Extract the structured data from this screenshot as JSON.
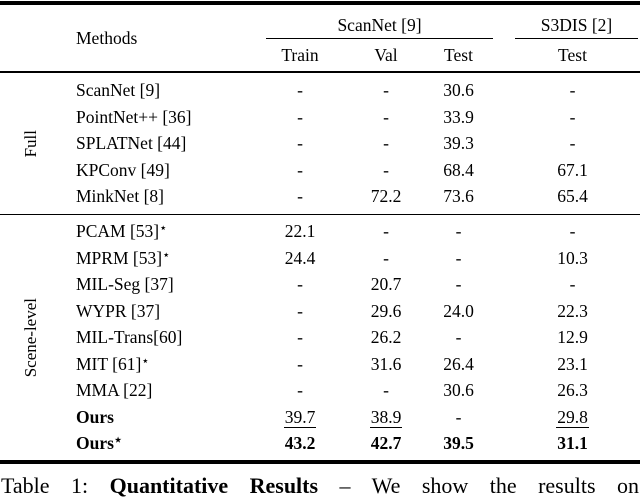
{
  "table": {
    "header": {
      "methods_label": "Methods",
      "groups": [
        {
          "label": "ScanNet [9]",
          "cols": [
            "Train",
            "Val",
            "Test"
          ]
        },
        {
          "label": "S3DIS [2]",
          "cols": [
            "Test"
          ]
        }
      ]
    },
    "sections": [
      {
        "label": "Full",
        "rows": [
          {
            "method": "ScanNet [9]",
            "sup": "",
            "values": [
              "-",
              "-",
              "30.6",
              "-"
            ]
          },
          {
            "method": "PointNet++ [36]",
            "sup": "",
            "values": [
              "-",
              "-",
              "33.9",
              "-"
            ]
          },
          {
            "method": "SPLATNet [44]",
            "sup": "",
            "values": [
              "-",
              "-",
              "39.3",
              "-"
            ]
          },
          {
            "method": "KPConv [49]",
            "sup": "",
            "values": [
              "-",
              "-",
              "68.4",
              "67.1"
            ]
          },
          {
            "method": "MinkNet [8]",
            "sup": "",
            "values": [
              "-",
              "72.2",
              "73.6",
              "65.4"
            ]
          }
        ]
      },
      {
        "label": "Scene-level",
        "rows": [
          {
            "method": "PCAM [53]",
            "sup": "⋆",
            "values": [
              "22.1",
              "-",
              "-",
              "-"
            ]
          },
          {
            "method": "MPRM [53]",
            "sup": "⋆",
            "values": [
              "24.4",
              "-",
              "-",
              "10.3"
            ]
          },
          {
            "method": "MIL-Seg [37]",
            "sup": "",
            "values": [
              "-",
              "20.7",
              "-",
              "-"
            ]
          },
          {
            "method": "WYPR [37]",
            "sup": "",
            "values": [
              "-",
              "29.6",
              "24.0",
              "22.3"
            ]
          },
          {
            "method": "MIL-Trans[60]",
            "sup": "",
            "values": [
              "-",
              "26.2",
              "-",
              "12.9"
            ]
          },
          {
            "method": "MIT [61]",
            "sup": "⋆",
            "values": [
              "-",
              "31.6",
              "26.4",
              "23.1"
            ]
          },
          {
            "method": "MMA [22]",
            "sup": "",
            "values": [
              "-",
              "-",
              "30.6",
              "26.3"
            ]
          },
          {
            "method": "Ours",
            "sup": "",
            "values": [
              "39.7",
              "38.9",
              "-",
              "29.8"
            ]
          },
          {
            "method": "Ours",
            "sup": "⋆",
            "values": [
              "43.2",
              "42.7",
              "39.5",
              "31.1"
            ]
          }
        ]
      }
    ]
  },
  "caption": {
    "prefix": "Table 1: ",
    "bold_text": "Quantitative Results",
    "suffix": " – We show the results on"
  }
}
